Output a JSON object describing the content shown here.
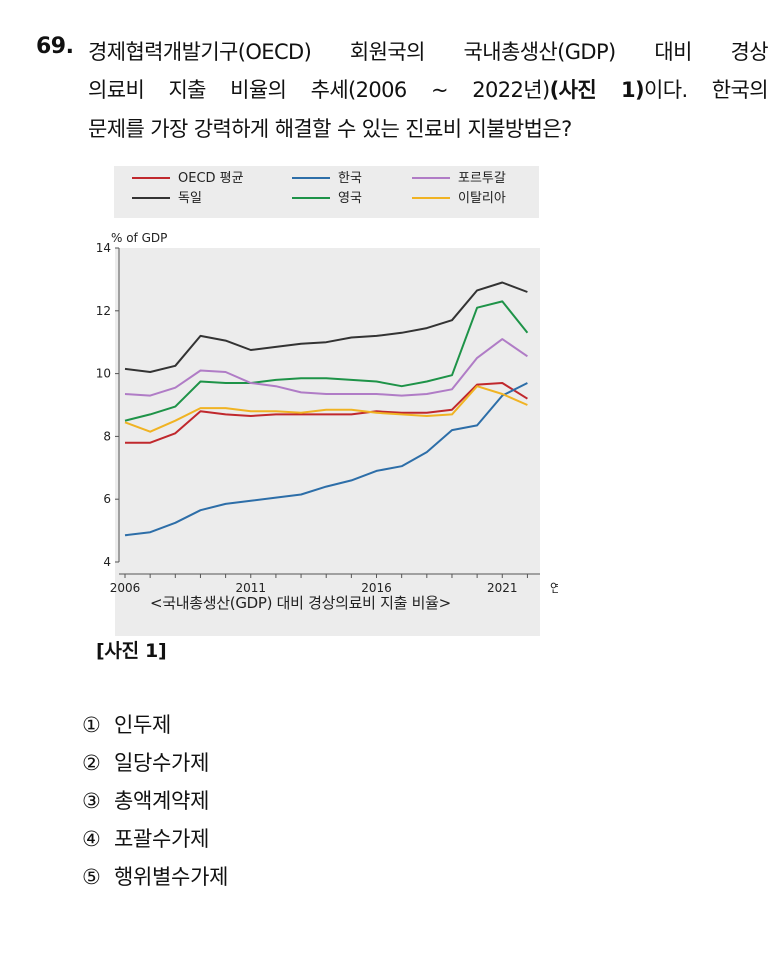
{
  "question": {
    "number": "69.",
    "line1": "경제협력개발기구(OECD) 회원국의 국내총생산(GDP) 대비 경상",
    "line2_pre": "의료비 지출 비율의 추세(2006 ~ 2022년)",
    "line2_bold": "(사진 1)",
    "line2_post": "이다. 한국의",
    "line3": "문제를 가장 강력하게 해결할 수 있는 진료비 지불방법은?"
  },
  "chart_data": {
    "type": "line",
    "ylabel": "% of GDP",
    "xlabel": "연도",
    "ylim": [
      4,
      14
    ],
    "yticks": [
      "4",
      "6",
      "8",
      "10",
      "12",
      "14"
    ],
    "xlim": [
      2006,
      2022.5
    ],
    "xticks": [
      "2006",
      "2011",
      "2016",
      "2021"
    ],
    "x": [
      2006,
      2007,
      2008,
      2009,
      2010,
      2011,
      2012,
      2013,
      2014,
      2015,
      2016,
      2017,
      2018,
      2019,
      2020,
      2021,
      2022
    ],
    "series": [
      {
        "name": "OECD 평균",
        "color": "#c0282d",
        "values": [
          7.8,
          7.8,
          8.1,
          8.8,
          8.7,
          8.65,
          8.7,
          8.7,
          8.7,
          8.7,
          8.8,
          8.75,
          8.75,
          8.85,
          9.65,
          9.7,
          9.2
        ]
      },
      {
        "name": "독일",
        "color": "#333333",
        "values": [
          10.15,
          10.05,
          10.25,
          11.2,
          11.05,
          10.75,
          10.85,
          10.95,
          11.0,
          11.15,
          11.2,
          11.3,
          11.45,
          11.7,
          12.65,
          12.9,
          12.6
        ]
      },
      {
        "name": "한국",
        "color": "#2d6ea8",
        "values": [
          4.85,
          4.95,
          5.25,
          5.65,
          5.85,
          5.95,
          6.05,
          6.15,
          6.4,
          6.6,
          6.9,
          7.05,
          7.5,
          8.2,
          8.35,
          9.3,
          9.7
        ]
      },
      {
        "name": "영국",
        "color": "#1e9348",
        "values": [
          8.5,
          8.7,
          8.95,
          9.75,
          9.7,
          9.7,
          9.8,
          9.85,
          9.85,
          9.8,
          9.75,
          9.6,
          9.75,
          9.95,
          12.1,
          12.3,
          11.3
        ]
      },
      {
        "name": "포르투갈",
        "color": "#b07cc6",
        "values": [
          9.35,
          9.3,
          9.55,
          10.1,
          10.05,
          9.7,
          9.6,
          9.4,
          9.35,
          9.35,
          9.35,
          9.3,
          9.35,
          9.5,
          10.5,
          11.1,
          10.55
        ]
      },
      {
        "name": "이탈리아",
        "color": "#f0b323",
        "values": [
          8.45,
          8.15,
          8.5,
          8.9,
          8.9,
          8.8,
          8.8,
          8.75,
          8.85,
          8.85,
          8.75,
          8.7,
          8.65,
          8.7,
          9.6,
          9.35,
          9.0
        ]
      }
    ]
  },
  "caption": "<국내총생산(GDP) 대비 경상의료비 지출 비율>",
  "photo_label": "[사진 1]",
  "options": [
    {
      "mark": "①",
      "text": "인두제"
    },
    {
      "mark": "②",
      "text": "일당수가제"
    },
    {
      "mark": "③",
      "text": "총액계약제"
    },
    {
      "mark": "④",
      "text": "포괄수가제"
    },
    {
      "mark": "⑤",
      "text": "행위별수가제"
    }
  ]
}
